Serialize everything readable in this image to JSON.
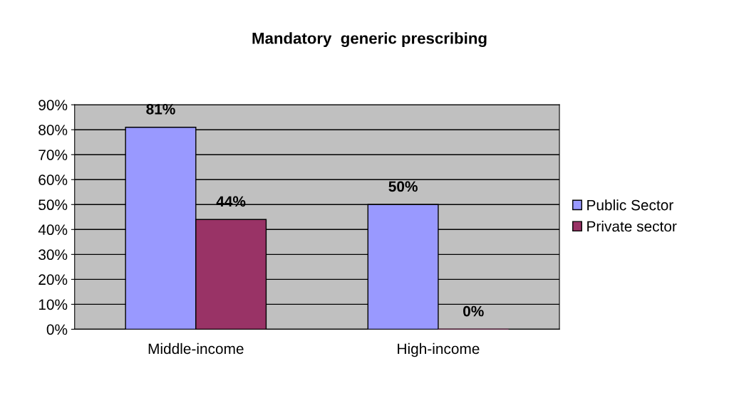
{
  "chart_data": {
    "type": "bar",
    "title": "Mandatory  generic prescribing",
    "categories": [
      "Middle-income",
      "High-income"
    ],
    "series": [
      {
        "name": "Public Sector",
        "color": "#9999ff",
        "values": [
          81,
          50
        ],
        "value_labels": [
          "81%",
          "50%"
        ]
      },
      {
        "name": "Private sector",
        "color": "#993366",
        "values": [
          44,
          0
        ],
        "value_labels": [
          "44%",
          "0%"
        ]
      }
    ],
    "ylim": [
      0,
      90
    ],
    "yticks": [
      {
        "value": 0,
        "label": "0%"
      },
      {
        "value": 10,
        "label": "10%"
      },
      {
        "value": 20,
        "label": "20%"
      },
      {
        "value": 30,
        "label": "30%"
      },
      {
        "value": 40,
        "label": "40%"
      },
      {
        "value": 50,
        "label": "50%"
      },
      {
        "value": 60,
        "label": "60%"
      },
      {
        "value": 70,
        "label": "70%"
      },
      {
        "value": 80,
        "label": "80%"
      },
      {
        "value": 90,
        "label": "90%"
      }
    ],
    "grid": "y",
    "legend": "right"
  }
}
